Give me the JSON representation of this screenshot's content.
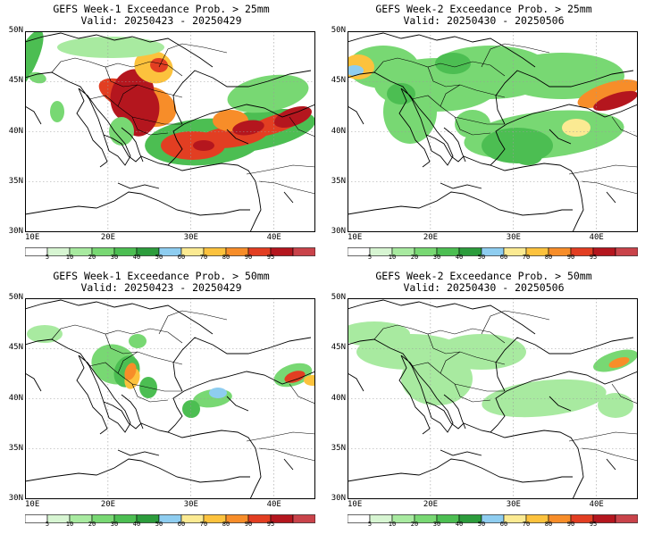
{
  "colorbar": {
    "colors": [
      "#ffffff",
      "#d7f5d2",
      "#a8eaa0",
      "#78d873",
      "#4cbe52",
      "#2c9c3c",
      "#8ecdf0",
      "#fbea92",
      "#fcc23d",
      "#f78d29",
      "#e23e22",
      "#b4161e",
      "#c9434a"
    ],
    "labels": [
      "5",
      "10",
      "20",
      "30",
      "40",
      "50",
      "60",
      "70",
      "80",
      "90",
      "95"
    ]
  },
  "axes": {
    "lat_labels": [
      "50N",
      "45N",
      "40N",
      "35N",
      "30N"
    ],
    "lon_labels": [
      "10E",
      "20E",
      "30E",
      "40E"
    ]
  },
  "panels": [
    {
      "title_line1": "GEFS Week-1 Exceedance Prob. > 25mm",
      "title_line2": "Valid: 20250423 - 20250429"
    },
    {
      "title_line1": "GEFS Week-2 Exceedance Prob. > 25mm",
      "title_line2": "Valid: 20250430 - 20250506"
    },
    {
      "title_line1": "GEFS Week-1 Exceedance Prob. > 50mm",
      "title_line2": "Valid: 20250423 - 20250429"
    },
    {
      "title_line1": "GEFS Week-2 Exceedance Prob. > 50mm",
      "title_line2": "Valid: 20250430 - 20250506"
    }
  ]
}
